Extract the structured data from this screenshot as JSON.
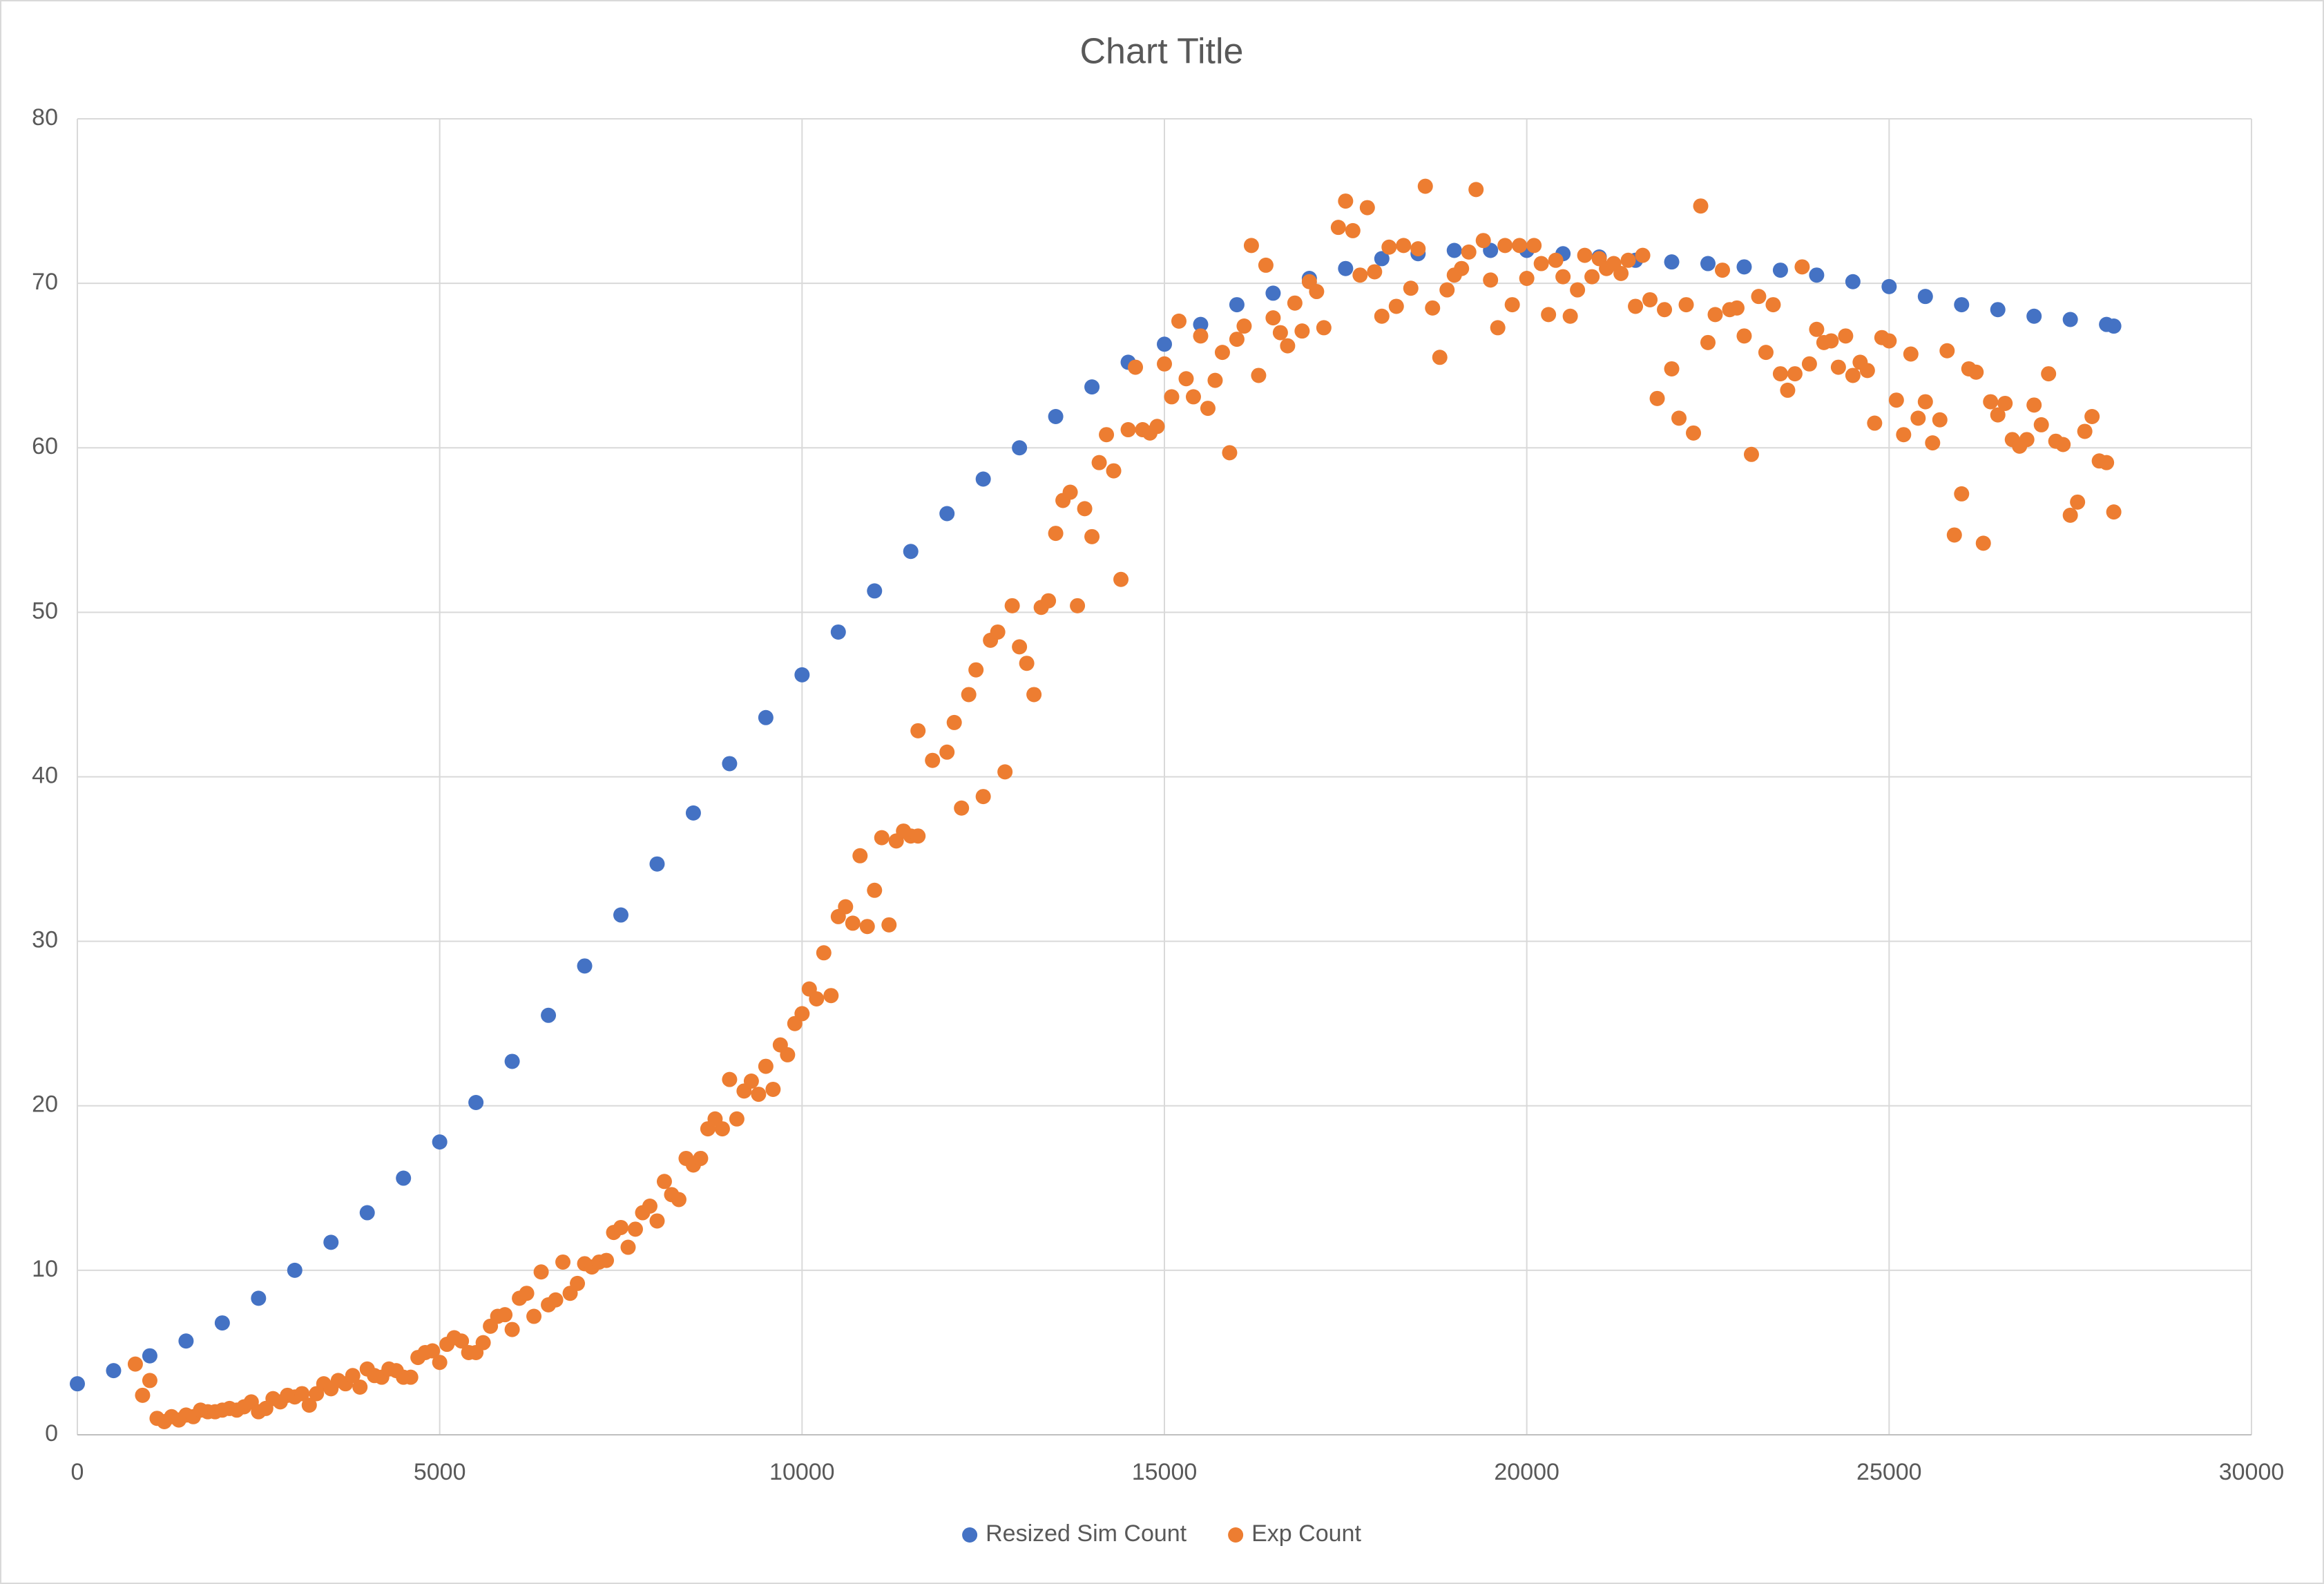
{
  "chart_data": {
    "type": "scatter",
    "title": "Chart Title",
    "xlim": [
      0,
      30000
    ],
    "xticks": [
      0,
      5000,
      10000,
      15000,
      20000,
      25000,
      30000
    ],
    "ylim": [
      0,
      80
    ],
    "yticks": [
      0,
      10,
      20,
      30,
      40,
      50,
      60,
      70,
      80
    ],
    "grid": true,
    "legend": "bottom",
    "series": [
      {
        "name": "Resized Sim Count",
        "color": "#4472c4",
        "x": [
          0,
          500,
          1000,
          1500,
          2000,
          2500,
          3000,
          3500,
          4000,
          4500,
          5000,
          5500,
          6000,
          6500,
          7000,
          7500,
          8000,
          8500,
          9000,
          9500,
          10000,
          10500,
          11000,
          11500,
          12000,
          12500,
          13000,
          13500,
          14000,
          14500,
          15000,
          15500,
          16000,
          16500,
          17000,
          17500,
          18000,
          18500,
          19000,
          19500,
          20000,
          20500,
          21000,
          21500,
          22000,
          22500,
          23000,
          23500,
          24000,
          24500,
          25000,
          25500,
          26000,
          26500,
          27000,
          27500,
          28000,
          28100
        ],
        "values": [
          3.1,
          3.9,
          4.8,
          5.7,
          6.8,
          8.3,
          10,
          11.7,
          13.5,
          15.6,
          17.8,
          20.2,
          22.7,
          25.5,
          28.5,
          31.6,
          34.7,
          37.8,
          40.8,
          43.6,
          46.2,
          48.8,
          51.3,
          53.7,
          56,
          58.1,
          60,
          61.9,
          63.7,
          65.2,
          66.3,
          67.5,
          68.7,
          69.4,
          70.3,
          70.9,
          71.5,
          71.8,
          72,
          72,
          72,
          71.8,
          71.6,
          71.4,
          71.3,
          71.2,
          71,
          70.8,
          70.5,
          70.1,
          69.8,
          69.2,
          68.7,
          68.4,
          68,
          67.8,
          67.5,
          67.4
        ]
      },
      {
        "name": "Exp Count",
        "color": "#ed7d31",
        "x": [
          800,
          900,
          1000,
          1100,
          1200,
          1300,
          1400,
          1500,
          1600,
          1700,
          1800,
          1900,
          2000,
          2100,
          2200,
          2300,
          2400,
          2500,
          2600,
          2700,
          2800,
          2900,
          3000,
          3100,
          3200,
          3300,
          3400,
          3500,
          3600,
          3700,
          3800,
          3900,
          4000,
          4100,
          4200,
          4300,
          4400,
          4500,
          4600,
          4700,
          4800,
          4900,
          5000,
          5100,
          5200,
          5300,
          5400,
          5500,
          5600,
          5700,
          5800,
          5900,
          6000,
          6100,
          6200,
          6300,
          6400,
          6500,
          6600,
          6700,
          6800,
          6900,
          7000,
          7100,
          7200,
          7300,
          7400,
          7500,
          7600,
          7700,
          7800,
          7900,
          8000,
          8100,
          8200,
          8300,
          8400,
          8500,
          8600,
          8700,
          8800,
          8900,
          9000,
          9100,
          9200,
          9300,
          9400,
          9500,
          9600,
          9700,
          9800,
          9900,
          10000,
          10100,
          10200,
          10300,
          10400,
          10500,
          10600,
          10700,
          10800,
          10900,
          11000,
          11100,
          11200,
          11300,
          11400,
          11500,
          11600,
          11600,
          11800,
          12000,
          12100,
          12200,
          12300,
          12400,
          12500,
          12600,
          12700,
          12800,
          12900,
          13000,
          13100,
          13200,
          13300,
          13400,
          13500,
          13600,
          13700,
          13800,
          13900,
          14000,
          14100,
          14200,
          14300,
          14400,
          14500,
          14600,
          14700,
          14800,
          14900,
          15000,
          15100,
          15200,
          15300,
          15400,
          15500,
          15600,
          15700,
          15800,
          15900,
          16000,
          16100,
          16200,
          16300,
          16400,
          16500,
          16600,
          16700,
          16800,
          16900,
          17000,
          17100,
          17200,
          17400,
          17500,
          17600,
          17700,
          17800,
          17900,
          18000,
          18100,
          18200,
          18300,
          18400,
          18500,
          18600,
          18700,
          18800,
          18900,
          19000,
          19100,
          19200,
          19300,
          19400,
          19500,
          19600,
          19700,
          19800,
          19900,
          20000,
          20100,
          20200,
          20300,
          20400,
          20500,
          20600,
          20700,
          20800,
          20900,
          21000,
          21100,
          21200,
          21300,
          21400,
          21500,
          21600,
          21700,
          21800,
          21900,
          22000,
          22100,
          22200,
          22300,
          22400,
          22500,
          22600,
          22700,
          22800,
          22900,
          23000,
          23100,
          23200,
          23300,
          23400,
          23500,
          23600,
          23700,
          23800,
          23900,
          24000,
          24100,
          24200,
          24300,
          24400,
          24500,
          24600,
          24700,
          24800,
          24900,
          25000,
          25100,
          25200,
          25300,
          25400,
          25500,
          25600,
          25700,
          25800,
          25900,
          26000,
          26100,
          26200,
          26300,
          26400,
          26500,
          26600,
          26700,
          26800,
          26900,
          27000,
          27100,
          27200,
          27300,
          27400,
          27500,
          27600,
          27700,
          27800,
          27900,
          28000,
          28100
        ],
        "values": [
          4.3,
          2.4,
          3.3,
          1.0,
          0.8,
          1.1,
          0.9,
          1.2,
          1.1,
          1.5,
          1.4,
          1.4,
          1.5,
          1.6,
          1.5,
          1.7,
          2.0,
          1.4,
          1.6,
          2.2,
          2.0,
          2.4,
          2.3,
          2.5,
          1.8,
          2.5,
          3.1,
          2.8,
          3.3,
          3.1,
          3.6,
          2.9,
          4.0,
          3.6,
          3.5,
          4.0,
          3.9,
          3.5,
          3.5,
          4.7,
          5.0,
          5.1,
          4.4,
          5.5,
          5.9,
          5.7,
          5.0,
          5.0,
          5.6,
          6.6,
          7.2,
          7.3,
          6.4,
          8.3,
          8.6,
          7.2,
          9.9,
          7.9,
          8.2,
          10.5,
          8.6,
          9.2,
          10.4,
          10.2,
          10.5,
          10.6,
          12.3,
          12.6,
          11.4,
          12.5,
          13.5,
          13.9,
          13.0,
          15.4,
          14.6,
          14.3,
          16.8,
          16.4,
          16.8,
          18.6,
          19.2,
          18.6,
          21.6,
          19.2,
          20.9,
          21.5,
          20.7,
          22.4,
          21.0,
          23.7,
          23.1,
          25.0,
          25.6,
          27.1,
          26.5,
          29.3,
          26.7,
          31.5,
          32.1,
          31.1,
          35.2,
          30.9,
          33.1,
          36.3,
          31.0,
          36.1,
          36.7,
          36.4,
          36.4,
          42.8,
          41.0,
          41.5,
          43.3,
          38.1,
          45.0,
          46.5,
          38.8,
          48.3,
          48.8,
          40.3,
          50.4,
          47.9,
          46.9,
          45.0,
          50.3,
          50.7,
          54.8,
          56.8,
          57.3,
          50.4,
          56.3,
          54.6,
          59.1,
          60.8,
          58.6,
          52.0,
          61.1,
          64.9,
          61.1,
          60.9,
          61.3,
          65.1,
          63.1,
          67.7,
          64.2,
          63.1,
          66.8,
          62.4,
          64.1,
          65.8,
          59.7,
          66.6,
          67.4,
          72.3,
          64.4,
          71.1,
          67.9,
          67.0,
          66.2,
          68.8,
          67.1,
          70.1,
          69.5,
          67.3,
          73.4,
          75.0,
          73.2,
          70.5,
          74.6,
          70.7,
          68.0,
          72.2,
          68.6,
          72.3,
          69.7,
          72.1,
          75.9,
          68.5,
          65.5,
          69.6,
          70.5,
          70.9,
          71.9,
          75.7,
          72.6,
          70.2,
          67.3,
          72.3,
          68.7,
          72.3,
          70.3,
          72.3,
          71.2,
          68.1,
          71.4,
          70.4,
          68.0,
          69.6,
          71.7,
          70.4,
          71.5,
          70.9,
          71.2,
          70.6,
          71.4,
          68.6,
          71.7,
          69.0,
          63.0,
          68.4,
          64.8,
          61.8,
          68.7,
          60.9,
          74.7,
          66.4,
          68.1,
          70.8,
          68.4,
          68.5,
          66.8,
          59.6,
          69.2,
          65.8,
          68.7,
          64.5,
          63.5,
          64.5,
          71.0,
          65.1,
          67.2,
          66.4,
          66.5,
          64.9,
          66.8,
          64.4,
          65.2,
          64.7,
          61.5,
          66.7,
          66.5,
          62.9,
          60.8,
          65.7,
          61.8,
          62.8,
          60.3,
          61.7,
          65.9,
          54.7,
          57.2,
          64.8,
          64.6,
          54.2,
          62.8,
          62.0,
          62.7,
          60.5,
          60.1,
          60.5,
          62.6,
          61.4,
          64.5,
          60.4,
          60.2,
          55.9,
          56.7,
          61.0,
          61.9,
          59.2,
          59.1,
          56.1
        ]
      }
    ]
  }
}
